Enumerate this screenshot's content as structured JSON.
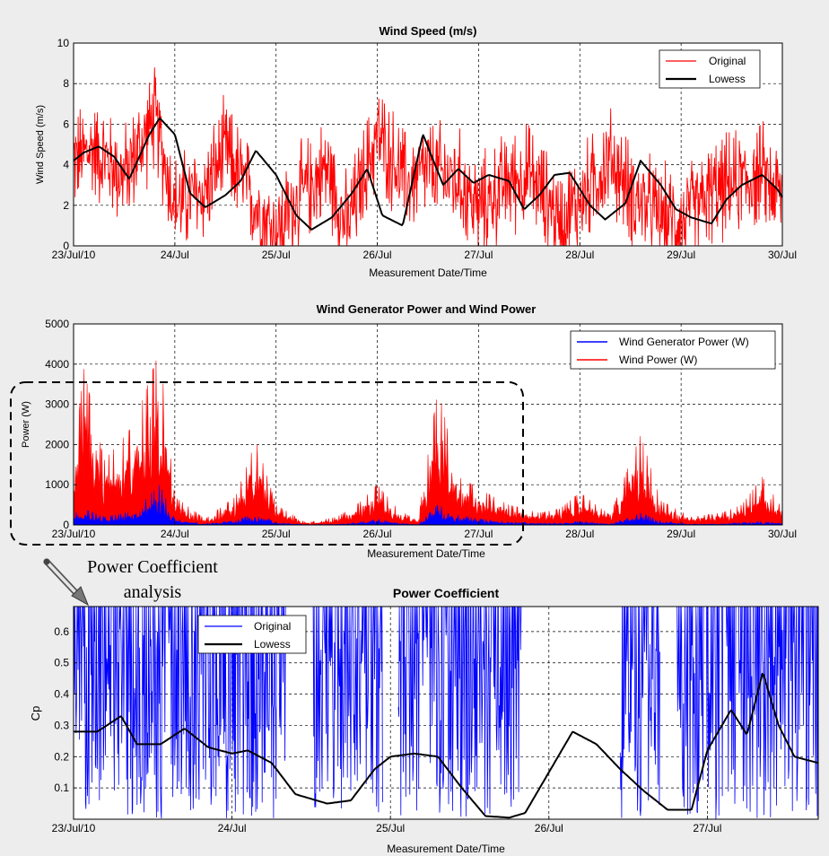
{
  "colors": {
    "figure_bg": "#ededed",
    "axes_bg": "#ffffff",
    "original_red": "#ff0000",
    "lowess_black": "#000000",
    "generator_blue": "#0000ff",
    "grid": "#000000"
  },
  "annotation": {
    "line1": "Power Coefficient",
    "line2": "analysis",
    "highlight_range": [
      "23/Jul/10",
      "27/Jul"
    ],
    "icon": "pencil-arrow-icon"
  },
  "chart_data": [
    {
      "type": "line",
      "title": "Wind Speed (m/s)",
      "xlabel": "Measurement Date/Time",
      "ylabel": "Wind Speed (m/s)",
      "xlim": [
        0,
        7
      ],
      "ylim": [
        0,
        10
      ],
      "x_tick_labels": [
        "23/Jul/10",
        "24/Jul",
        "25/Jul",
        "26/Jul",
        "27/Jul",
        "28/Jul",
        "29/Jul",
        "30/Jul"
      ],
      "y_ticks": [
        0,
        2,
        4,
        6,
        8,
        10
      ],
      "grid": true,
      "legend_position": "top-right",
      "series": [
        {
          "name": "Original",
          "color": "#ff0000",
          "style": "noisy-line",
          "x": [
            0,
            0.2,
            0.5,
            0.8,
            1.0,
            1.3,
            1.5,
            1.8,
            2.0,
            2.2,
            2.5,
            2.7,
            3.0,
            3.3,
            3.5,
            3.8,
            4.0,
            4.3,
            4.5,
            4.8,
            5.0,
            5.3,
            5.5,
            5.8,
            6.0,
            6.3,
            6.5,
            6.8,
            7.0
          ],
          "y": [
            4.2,
            4.8,
            3.4,
            6.3,
            2.0,
            2.7,
            4.7,
            2.0,
            0.6,
            2.2,
            3.9,
            0.9,
            5.5,
            3.0,
            3.8,
            3.2,
            1.8,
            3.2,
            3.5,
            1.3,
            2.2,
            4.3,
            2.6,
            1.4,
            1.2,
            2.6,
            3.0,
            3.5,
            2.4
          ],
          "noise": 2.2
        },
        {
          "name": "Lowess",
          "color": "#000000",
          "style": "smooth-line",
          "x": [
            0,
            0.1,
            0.25,
            0.4,
            0.55,
            0.75,
            0.85,
            1.0,
            1.15,
            1.3,
            1.5,
            1.65,
            1.8,
            2.0,
            2.2,
            2.35,
            2.55,
            2.75,
            2.9,
            3.05,
            3.25,
            3.45,
            3.65,
            3.8,
            3.95,
            4.1,
            4.3,
            4.45,
            4.6,
            4.75,
            4.9,
            5.1,
            5.25,
            5.45,
            5.6,
            5.8,
            5.95,
            6.1,
            6.3,
            6.45,
            6.6,
            6.8,
            6.95,
            7.0
          ],
          "y": [
            4.2,
            4.6,
            4.9,
            4.4,
            3.3,
            5.5,
            6.3,
            5.5,
            2.6,
            1.9,
            2.5,
            3.2,
            4.7,
            3.5,
            1.5,
            0.8,
            1.4,
            2.6,
            3.8,
            1.5,
            1.0,
            5.5,
            3.0,
            3.8,
            3.1,
            3.5,
            3.2,
            1.8,
            2.5,
            3.5,
            3.6,
            2.0,
            1.3,
            2.1,
            4.2,
            3.0,
            1.8,
            1.4,
            1.1,
            2.3,
            3.0,
            3.5,
            2.8,
            2.4
          ]
        }
      ]
    },
    {
      "type": "area",
      "title": "Wind Generator Power and Wind Power",
      "xlabel": "Measurement Date/Time",
      "ylabel": "Power (W)",
      "xlim": [
        0,
        7
      ],
      "ylim": [
        0,
        5000
      ],
      "x_tick_labels": [
        "23/Jul/10",
        "24/Jul",
        "25/Jul",
        "26/Jul",
        "27/Jul",
        "28/Jul",
        "29/Jul",
        "30/Jul"
      ],
      "y_ticks": [
        0,
        1000,
        2000,
        3000,
        4000,
        5000
      ],
      "grid": true,
      "legend_position": "top-right",
      "series": [
        {
          "name": "Wind Generator Power (W)",
          "color": "#0000ff",
          "style": "spiky-fill",
          "x": [
            0,
            0.1,
            0.3,
            0.6,
            0.85,
            1.0,
            1.3,
            1.6,
            1.8,
            2.0,
            2.3,
            2.6,
            2.8,
            3.0,
            3.2,
            3.4,
            3.6,
            3.8,
            4.0,
            4.3,
            4.6,
            4.8,
            5.0,
            5.3,
            5.6,
            5.8,
            6.1,
            6.4,
            6.6,
            6.8,
            7.0
          ],
          "y": [
            300,
            400,
            200,
            350,
            1000,
            150,
            30,
            100,
            300,
            60,
            10,
            20,
            60,
            150,
            50,
            10,
            500,
            250,
            150,
            80,
            50,
            40,
            100,
            30,
            300,
            100,
            20,
            30,
            60,
            80,
            50
          ]
        },
        {
          "name": "Wind Power (W)",
          "color": "#ff0000",
          "style": "spiky-fill",
          "x": [
            0,
            0.1,
            0.3,
            0.6,
            0.85,
            1.0,
            1.3,
            1.6,
            1.8,
            2.0,
            2.3,
            2.6,
            2.8,
            3.0,
            3.2,
            3.4,
            3.6,
            3.8,
            4.0,
            4.3,
            4.6,
            4.8,
            5.0,
            5.3,
            5.6,
            5.8,
            6.1,
            6.4,
            6.6,
            6.8,
            7.0
          ],
          "y": [
            1500,
            3900,
            1600,
            2500,
            4350,
            700,
            150,
            700,
            2100,
            500,
            50,
            200,
            500,
            1000,
            400,
            100,
            3400,
            1200,
            900,
            500,
            300,
            400,
            800,
            250,
            2250,
            600,
            200,
            300,
            500,
            1200,
            400
          ]
        }
      ]
    },
    {
      "type": "line",
      "title": "Power Coefficient",
      "xlabel": "Measurement Date/Time",
      "ylabel": "Cp",
      "xlim": [
        0,
        4.7
      ],
      "ylim": [
        0,
        0.68
      ],
      "x_tick_labels": [
        "23/Jul/10",
        "24/Jul",
        "25/Jul",
        "26/Jul",
        "27/Jul"
      ],
      "y_tick_labels": [
        "0.1",
        "0.2",
        "0.3",
        "0.4",
        "0.5",
        "0.6"
      ],
      "grid": true,
      "legend_position": "top-left",
      "series": [
        {
          "name": "Original",
          "color": "#0000ff",
          "style": "dense-noise",
          "active_ranges": [
            [
              0,
              1.35
            ],
            [
              1.5,
              1.95
            ],
            [
              2.05,
              2.85
            ],
            [
              3.45,
              3.7
            ],
            [
              3.8,
              4.7
            ]
          ]
        },
        {
          "name": "Lowess",
          "color": "#000000",
          "style": "smooth-line",
          "x": [
            0,
            0.15,
            0.3,
            0.4,
            0.55,
            0.7,
            0.85,
            1.0,
            1.1,
            1.25,
            1.4,
            1.6,
            1.75,
            1.9,
            2.0,
            2.15,
            2.3,
            2.45,
            2.6,
            2.75,
            2.85,
            3.0,
            3.15,
            3.3,
            3.45,
            3.6,
            3.75,
            3.9,
            4.0,
            4.15,
            4.25,
            4.35,
            4.45,
            4.55,
            4.7
          ],
          "y": [
            0.28,
            0.28,
            0.33,
            0.24,
            0.24,
            0.29,
            0.23,
            0.21,
            0.22,
            0.18,
            0.08,
            0.05,
            0.06,
            0.16,
            0.2,
            0.21,
            0.2,
            0.1,
            0.01,
            0.005,
            0.02,
            0.15,
            0.28,
            0.24,
            0.16,
            0.09,
            0.03,
            0.03,
            0.22,
            0.35,
            0.27,
            0.47,
            0.3,
            0.2,
            0.18
          ]
        }
      ]
    }
  ]
}
